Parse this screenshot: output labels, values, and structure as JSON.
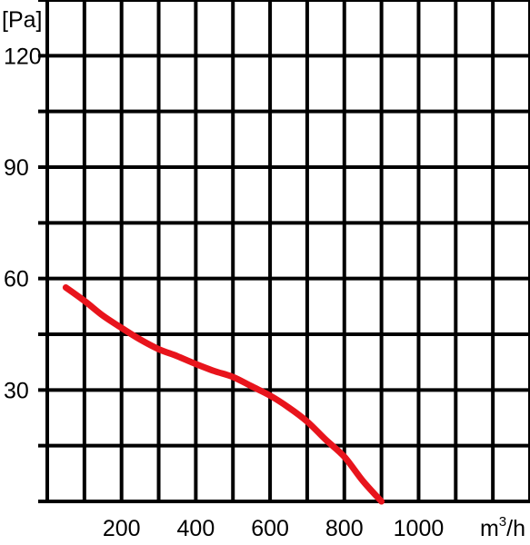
{
  "chart_data": {
    "type": "line",
    "y_unit_label": "[Pa]",
    "x_unit_label": "m",
    "x_unit_sup": "3",
    "x_unit_suffix": "/h",
    "xlim": [
      0,
      1300
    ],
    "ylim": [
      0,
      135
    ],
    "x_grid_step": 100,
    "y_grid_step": 15,
    "grid": true,
    "x_ticks": [
      {
        "value": 200,
        "label": "200"
      },
      {
        "value": 400,
        "label": "400"
      },
      {
        "value": 600,
        "label": "600"
      },
      {
        "value": 800,
        "label": "800"
      },
      {
        "value": 1000,
        "label": "1000"
      }
    ],
    "y_ticks": [
      {
        "value": 30,
        "label": "30"
      },
      {
        "value": 60,
        "label": "60"
      },
      {
        "value": 90,
        "label": "90"
      },
      {
        "value": 120,
        "label": "120"
      }
    ],
    "series": [
      {
        "color": "#e8141c",
        "x": [
          50,
          100,
          150,
          200,
          250,
          300,
          350,
          400,
          450,
          500,
          550,
          600,
          650,
          700,
          750,
          800,
          850,
          900
        ],
        "y": [
          57.6,
          54.0,
          50.0,
          46.7,
          43.6,
          41.0,
          39.1,
          37.0,
          35.1,
          33.5,
          31.0,
          28.5,
          25.3,
          21.5,
          16.6,
          12.0,
          5.5,
          0
        ]
      }
    ]
  }
}
